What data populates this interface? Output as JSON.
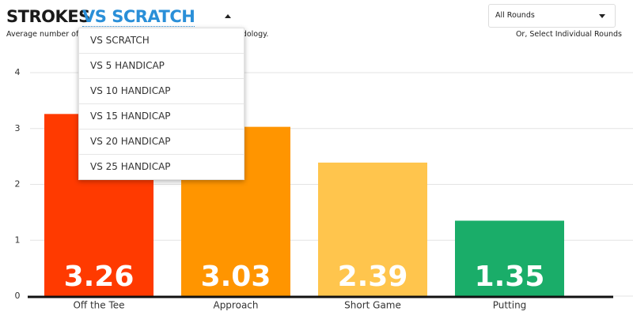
{
  "header": {
    "title": "STROKES",
    "comparison": "VS SCRATCH",
    "subtitle_parts": [
      "Average number of str",
      "odology."
    ]
  },
  "rounds": {
    "select": "All Rounds",
    "hint": "Or, Select Individual Rounds"
  },
  "menu": {
    "items": [
      "VS SCRATCH",
      "VS 5 HANDICAP",
      "VS 10 HANDICAP",
      "VS 15 HANDICAP",
      "VS 20 HANDICAP",
      "VS 25 HANDICAP"
    ]
  },
  "chart_data": {
    "type": "bar",
    "categories": [
      "Off the Tee",
      "Approach",
      "Short Game",
      "Putting"
    ],
    "values": [
      3.26,
      3.03,
      2.39,
      1.35
    ],
    "colors": [
      "#ff3a00",
      "#ff9500",
      "#ffc54d",
      "#1aad69"
    ],
    "ylim": [
      0,
      4
    ],
    "yticks": [
      0,
      1,
      2,
      3,
      4
    ],
    "grid": true
  }
}
